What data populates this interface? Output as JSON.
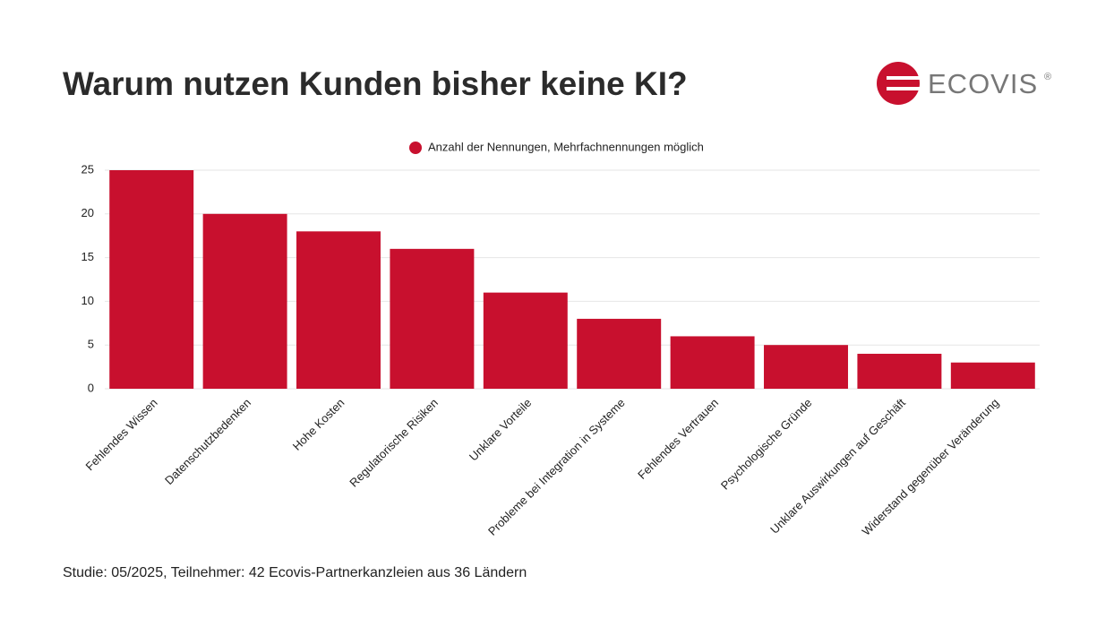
{
  "chart_data": {
    "type": "bar",
    "title": "Warum nutzen Kunden bisher keine KI?",
    "categories": [
      "Fehlendes Wissen",
      "Datenschutzbedenken",
      "Hohe Kosten",
      "Regulatorische Risiken",
      "Unklare Vorteile",
      "Probleme bei Integration in Systeme",
      "Fehlendes Vertrauen",
      "Psychologische Gründe",
      "Unklare Auswirkungen auf Geschäft",
      "Widerstand gegenüber Veränderung"
    ],
    "series": [
      {
        "name": "Anzahl der Nennungen, Mehrfachnennungen möglich",
        "color": "#c8102e",
        "values": [
          25,
          20,
          18,
          16,
          11,
          8,
          6,
          5,
          4,
          3
        ]
      }
    ],
    "ylim": [
      0,
      25
    ],
    "yticks": [
      0,
      5,
      10,
      15,
      20,
      25
    ],
    "grid": true,
    "legend": "top",
    "footnote": "Studie: 05/2025, Teilnehmer: 42 Ecovis-Partnerkanzleien aus 36 Ländern"
  },
  "logo": {
    "text": "ECOVIS",
    "mark": "®"
  }
}
